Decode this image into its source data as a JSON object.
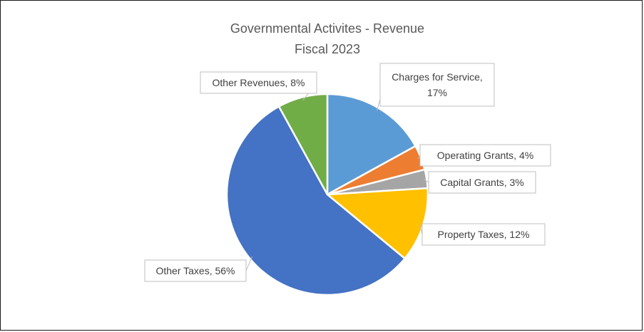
{
  "chart_data": {
    "type": "pie",
    "title": "Governmental Activites - Revenue",
    "subtitle": "Fiscal 2023",
    "slices": [
      {
        "label": "Charges for Service",
        "value": 17,
        "color": "#5B9BD5"
      },
      {
        "label": "Operating Grants",
        "value": 4,
        "color": "#ED7D31"
      },
      {
        "label": "Capital Grants",
        "value": 3,
        "color": "#A5A5A5"
      },
      {
        "label": "Property Taxes",
        "value": 12,
        "color": "#FFC000"
      },
      {
        "label": "Other Taxes",
        "value": 56,
        "color": "#4472C4"
      },
      {
        "label": "Other Revenues",
        "value": 8,
        "color": "#70AD47"
      }
    ],
    "data_labels": [
      {
        "lines": [
          "Charges for Service,",
          "17%"
        ]
      },
      {
        "lines": [
          "Operating Grants, 4%"
        ]
      },
      {
        "lines": [
          "Capital Grants, 3%"
        ]
      },
      {
        "lines": [
          "Property Taxes, 12%"
        ]
      },
      {
        "lines": [
          "Other Taxes, 56%"
        ]
      },
      {
        "lines": [
          "Other Revenues, 8%"
        ]
      }
    ],
    "legend": "none"
  }
}
